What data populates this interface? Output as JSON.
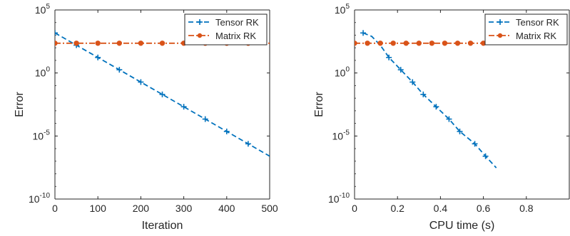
{
  "colors": {
    "tensor": "#0072BD",
    "matrix": "#D95319",
    "axis": "#262626"
  },
  "chart_data": [
    {
      "type": "line",
      "xlabel": "Iteration",
      "ylabel": "Error",
      "yscale": "log",
      "xlim": [
        0,
        500
      ],
      "ylim": [
        1e-10,
        100000.0
      ],
      "xticks": [
        0,
        100,
        200,
        300,
        400,
        500
      ],
      "xtick_labels": [
        "0",
        "100",
        "200",
        "300",
        "400",
        "500"
      ],
      "yticks": [
        1e-10,
        1e-05,
        1.0,
        100000.0
      ],
      "ytick_labels": [
        {
          "base": "10",
          "exp": "-10"
        },
        {
          "base": "10",
          "exp": "-5"
        },
        {
          "base": "10",
          "exp": "0"
        },
        {
          "base": "10",
          "exp": "5"
        }
      ],
      "grid": false,
      "legend": "top-right",
      "series": [
        {
          "name": "Tensor RK",
          "style": "dashed",
          "marker": "plus",
          "x": [
            0,
            50,
            100,
            150,
            200,
            250,
            300,
            350,
            400,
            450,
            500
          ],
          "y": [
            1500,
            160,
            17,
            1.8,
            0.19,
            0.02,
            0.0021,
            0.00022,
            2.3e-05,
            2.4e-06,
            2.5e-07
          ],
          "marker_x": [
            0,
            50,
            100,
            150,
            200,
            250,
            300,
            350,
            400,
            450
          ]
        },
        {
          "name": "Matrix RK",
          "style": "dash-dot",
          "marker": "circle",
          "x": [
            0,
            50,
            100,
            150,
            200,
            250,
            300,
            350,
            400,
            450,
            500
          ],
          "y": [
            230,
            230,
            230,
            230,
            230,
            230,
            230,
            230,
            230,
            230,
            230
          ],
          "marker_x": [
            0,
            50,
            100,
            150,
            200,
            250,
            300,
            350,
            400,
            450
          ]
        }
      ]
    },
    {
      "type": "line",
      "xlabel": "CPU time (s)",
      "ylabel": "Error",
      "yscale": "log",
      "xlim": [
        0,
        1
      ],
      "ylim": [
        1e-10,
        100000.0
      ],
      "xticks": [
        0,
        0.2,
        0.4,
        0.6,
        0.8
      ],
      "xtick_labels": [
        "0",
        "0.2",
        "0.4",
        "0.6",
        "0.8"
      ],
      "yticks": [
        1e-10,
        1e-05,
        1.0,
        100000.0
      ],
      "ytick_labels": [
        {
          "base": "10",
          "exp": "-10"
        },
        {
          "base": "10",
          "exp": "-5"
        },
        {
          "base": "10",
          "exp": "0"
        },
        {
          "base": "10",
          "exp": "5"
        }
      ],
      "grid": false,
      "legend": "top-right",
      "series": [
        {
          "name": "Tensor RK",
          "style": "dashed",
          "marker": "plus",
          "x": [
            0.04,
            0.08,
            0.12,
            0.16,
            0.215,
            0.27,
            0.32,
            0.38,
            0.44,
            0.49,
            0.56,
            0.61,
            0.66
          ],
          "y": [
            1500,
            800,
            160,
            17,
            1.8,
            0.19,
            0.02,
            0.0021,
            0.00022,
            2.3e-05,
            2.4e-06,
            2.5e-07,
            3e-08
          ],
          "marker_x": [
            0.04,
            0.16,
            0.215,
            0.27,
            0.32,
            0.38,
            0.44,
            0.49,
            0.56,
            0.61
          ]
        },
        {
          "name": "Matrix RK",
          "style": "dash-dot",
          "marker": "circle",
          "x": [
            0,
            0.1,
            0.2,
            0.3,
            0.4,
            0.5,
            0.6,
            0.66
          ],
          "y": [
            230,
            230,
            230,
            230,
            230,
            230,
            230,
            230
          ],
          "marker_x": [
            0,
            0.06,
            0.12,
            0.18,
            0.24,
            0.3,
            0.36,
            0.42,
            0.48,
            0.54,
            0.6
          ]
        }
      ]
    }
  ]
}
